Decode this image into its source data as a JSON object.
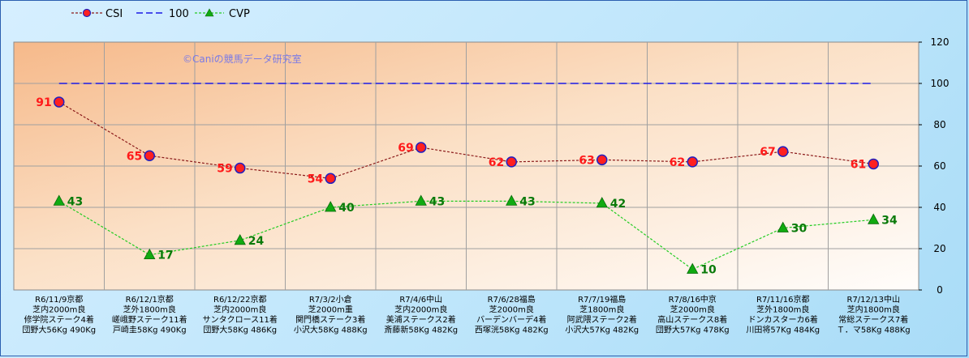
{
  "watermark": "©Caniの競馬データ研究室",
  "chart_data": {
    "type": "line",
    "ylim": [
      0,
      120
    ],
    "yticks": [
      0,
      20,
      40,
      60,
      80,
      100,
      120
    ],
    "grid": true,
    "legend_position": "top-left",
    "categories": [
      [
        "R6/11/9京都",
        "芝内2000m良",
        "修学院ステーク4着",
        "団野大56Kg 490Kg"
      ],
      [
        "R6/12/1京都",
        "芝外1800m良",
        "嵯峨野ステーク11着",
        "戸崎圭58Kg 490Kg"
      ],
      [
        "R6/12/22京都",
        "芝内2000m良",
        "サンタクロース11着",
        "団野大58Kg 486Kg"
      ],
      [
        "R7/3/2小倉",
        "芝2000m重",
        "関門橋ステーク3着",
        "小沢大58Kg 488Kg"
      ],
      [
        "R7/4/6中山",
        "芝内2000m良",
        "美浦ステークス2着",
        "斎藤新58Kg 482Kg"
      ],
      [
        "R7/6/28福島",
        "芝2000m良",
        "バーデンバーデ4着",
        "西塚洸58Kg 482Kg"
      ],
      [
        "R7/7/19福島",
        "芝1800m良",
        "阿武隈ステーク2着",
        "小沢大57Kg 482Kg"
      ],
      [
        "R7/8/16中京",
        "芝2000m良",
        "高山ステークス8着",
        "団野大57Kg 478Kg"
      ],
      [
        "R7/11/16京都",
        "芝外1800m良",
        "ドンカスターカ6着",
        "川田将57Kg 484Kg"
      ],
      [
        "R7/12/13中山",
        "芝内1800m良",
        "常総ステークス7着",
        "Ｔ．マ58Kg 488Kg"
      ]
    ],
    "series": [
      {
        "name": "CSI",
        "values": [
          91,
          65,
          59,
          54,
          69,
          62,
          63,
          62,
          67,
          61
        ],
        "color": "#8b1a1a",
        "marker": "circle",
        "marker_fill": "#ff2020",
        "marker_stroke": "#2020c0",
        "label_color": "#ff1a1a"
      },
      {
        "name": "100",
        "values": [
          100,
          100,
          100,
          100,
          100,
          100,
          100,
          100,
          100,
          100
        ],
        "color": "#1a1ae6",
        "marker": "none"
      },
      {
        "name": "CVP",
        "values": [
          43,
          17,
          24,
          40,
          43,
          43,
          42,
          10,
          30,
          34
        ],
        "color": "#22cc22",
        "marker": "triangle",
        "marker_fill": "#11aa11",
        "label_color": "#0a7a0a"
      }
    ]
  }
}
